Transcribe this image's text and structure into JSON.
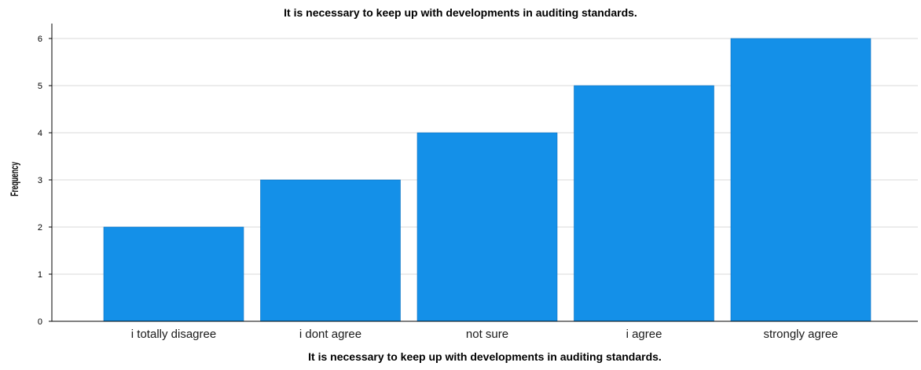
{
  "chart_data": {
    "type": "bar",
    "title": "It is necessary to keep up with developments in auditing standards.",
    "xlabel": "It is necessary to keep up with developments in auditing standards.",
    "ylabel": "Frequency",
    "categories": [
      "i totally disagree",
      "i dont agree",
      "not sure",
      "i agree",
      "strongly agree"
    ],
    "values": [
      2,
      3,
      4,
      5,
      6
    ],
    "ylim": [
      0,
      6
    ],
    "yticks": [
      "0",
      "1",
      "2",
      "3",
      "4",
      "5",
      "6"
    ],
    "grid": true,
    "colors": {
      "bar": "#1490E8",
      "bar_edge": "#0d72bf",
      "grid": "#d9d9d9",
      "axis": "#000000"
    }
  }
}
